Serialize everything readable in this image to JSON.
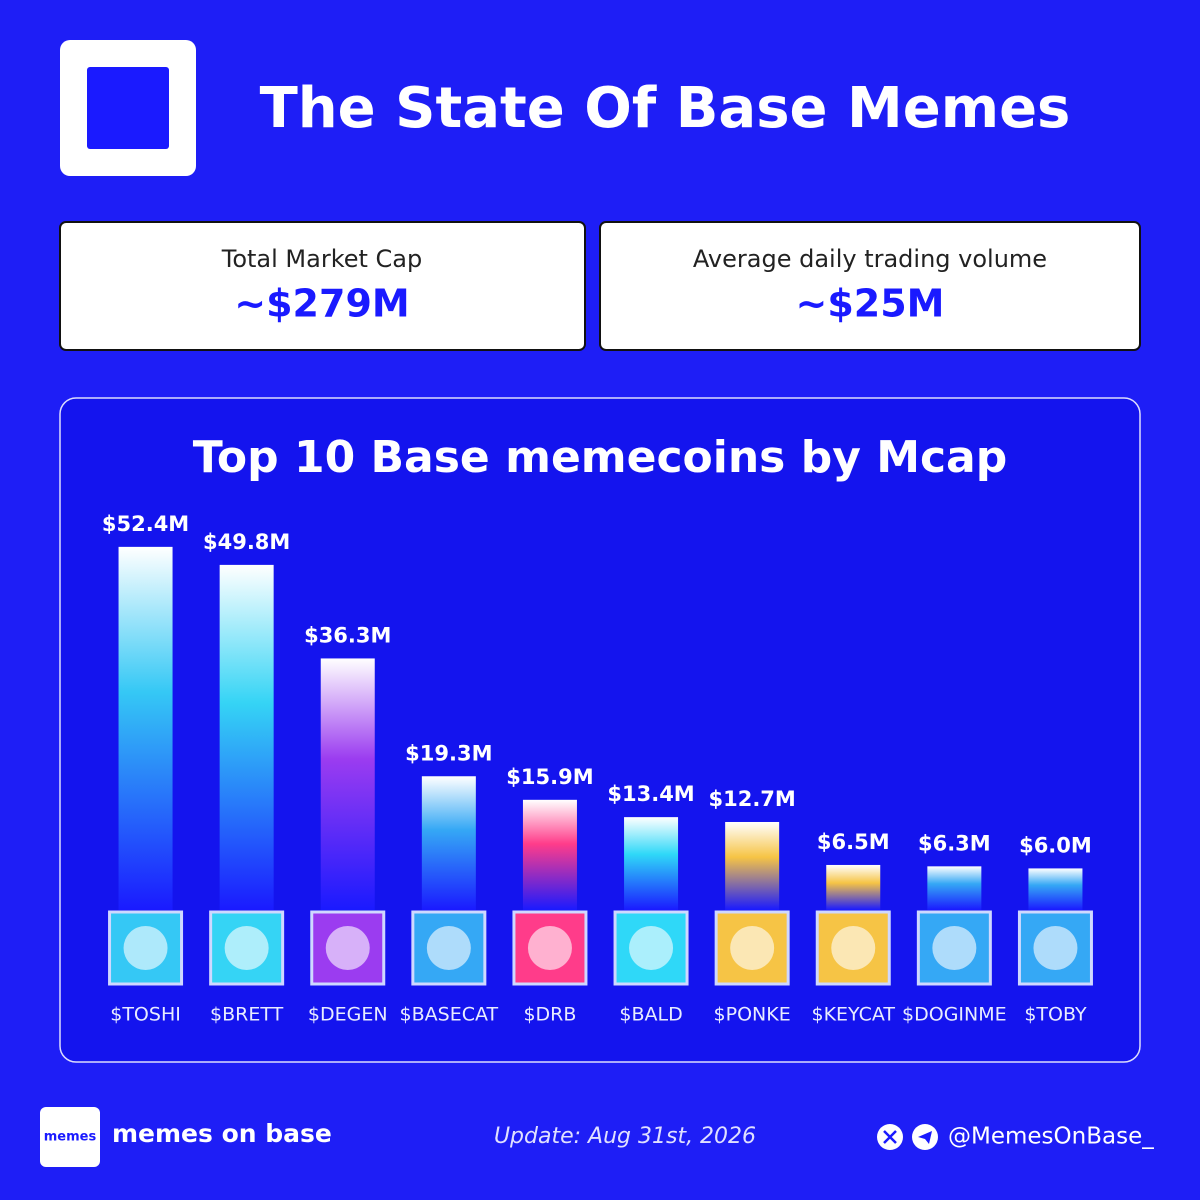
{
  "title": "The State Of Base Memes",
  "stats": [
    {
      "label": "Total Market Cap",
      "value": "~$279M"
    },
    {
      "label": "Average daily trading volume",
      "value": "~$25M"
    }
  ],
  "chart_data": {
    "type": "bar",
    "title": "Top 10 Base memecoins by Mcap",
    "categories": [
      "$TOSHI",
      "$BRETT",
      "$DEGEN",
      "$BASECAT",
      "$DRB",
      "$BALD",
      "$PONKE",
      "$KEYCAT",
      "$DOGINME",
      "$TOBY"
    ],
    "values": [
      52.4,
      49.8,
      36.3,
      19.3,
      15.9,
      13.4,
      12.7,
      6.5,
      6.3,
      6.0
    ],
    "value_labels": [
      "$52.4M",
      "$49.8M",
      "$36.3M",
      "$19.3M",
      "$15.9M",
      "$13.4M",
      "$12.7M",
      "$6.5M",
      "$6.3M",
      "$6.0M"
    ],
    "colors": [
      "#35c8f5",
      "#35d4f5",
      "#9b3cf0",
      "#35a8f5",
      "#ff3c8a",
      "#2fd8f8",
      "#f6c445",
      "#f6c445",
      "#35a8f5",
      "#35a8f5"
    ]
  },
  "footer": {
    "brand_icon": "memes",
    "brand": "memes on base",
    "update": "Update: Aug 31st, 2026",
    "handle": "@MemesOnBase_"
  }
}
